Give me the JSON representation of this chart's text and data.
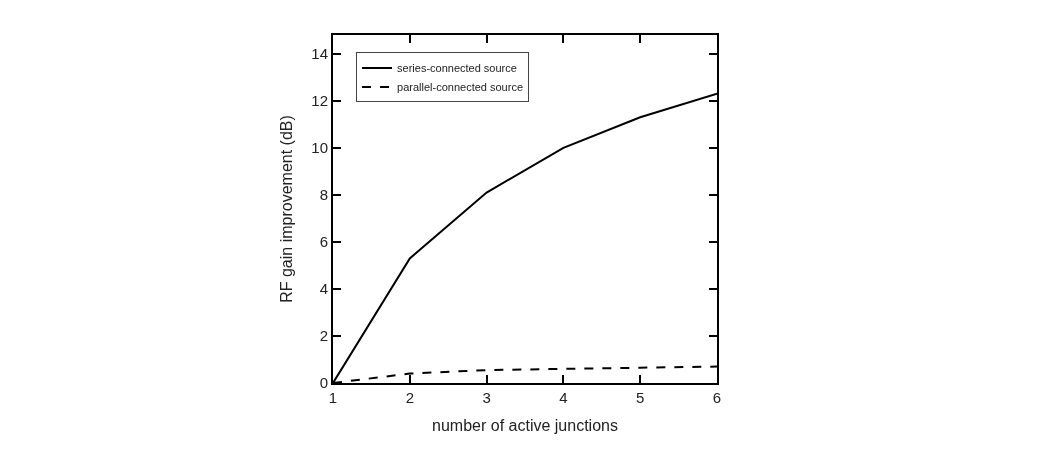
{
  "chart_data": {
    "type": "line",
    "xlabel": "number of active junctions",
    "ylabel": "RF gain improvement (dB)",
    "x": [
      1,
      2,
      3,
      4,
      5,
      6
    ],
    "series": [
      {
        "name": "series-connected source",
        "color": "#000000",
        "line_style": "solid",
        "values": [
          0,
          5.3,
          8.1,
          10.0,
          11.3,
          12.3
        ]
      },
      {
        "name": "parallel-connected source",
        "color": "#000000",
        "line_style": "dashed",
        "values": [
          0,
          0.4,
          0.55,
          0.6,
          0.65,
          0.7
        ]
      }
    ],
    "xlim": [
      1,
      6
    ],
    "xticks": [
      1,
      2,
      3,
      4,
      5,
      6
    ],
    "ylim": [
      0,
      14.8
    ],
    "yticks": [
      0,
      2,
      4,
      6,
      8,
      10,
      12,
      14
    ],
    "legend": "top left",
    "grid": false,
    "marker": "none"
  }
}
